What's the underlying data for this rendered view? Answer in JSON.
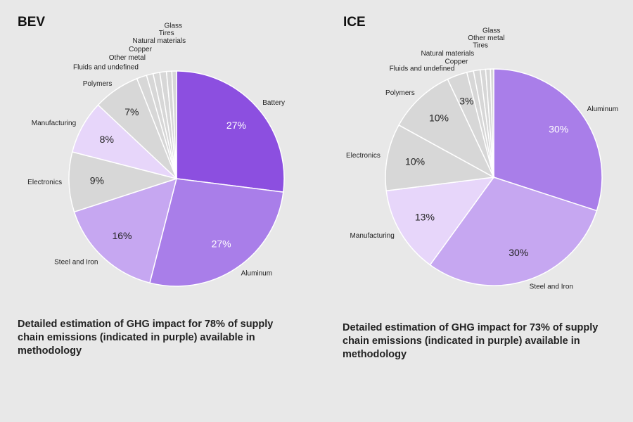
{
  "chart_data": [
    {
      "type": "pie",
      "title": "BEV",
      "categories": [
        "Battery",
        "Aluminum",
        "Steel and Iron",
        "Electronics",
        "Manufacturing",
        "Polymers",
        "Fluids and undefined",
        "Other metal",
        "Copper",
        "Natural materials",
        "Tires",
        "Glass"
      ],
      "values": [
        27,
        27,
        16,
        9,
        8,
        7,
        1.5,
        1,
        1,
        1,
        0.8,
        0.7
      ],
      "value_labels": [
        "27%",
        "27%",
        "16%",
        "9%",
        "8%",
        "7%",
        null,
        null,
        null,
        null,
        null,
        null
      ],
      "colors": [
        "#8c4fe0",
        "#a97ee9",
        "#c6a7f1",
        "#d7d7d7",
        "#e7d6fa",
        "#d7d7d7",
        "#d7d7d7",
        "#d7d7d7",
        "#d7d7d7",
        "#d7d7d7",
        "#d7d7d7",
        "#d7d7d7"
      ],
      "caption": "Detailed estimation of GHG impact for 78% of supply chain emissions (indicated in purple) available in methodology"
    },
    {
      "type": "pie",
      "title": "ICE",
      "categories": [
        "Aluminum",
        "Steel and Iron",
        "Manufacturing",
        "Electronics",
        "Polymers",
        "Fluids and undefined",
        "Copper",
        "Natural materials",
        "Tires",
        "Other metal",
        "Glass"
      ],
      "values": [
        30,
        30,
        13,
        10,
        10,
        3,
        1,
        1,
        0.8,
        0.7,
        0.5
      ],
      "value_labels": [
        "30%",
        "30%",
        "13%",
        "10%",
        "10%",
        "3%",
        null,
        null,
        null,
        null,
        null
      ],
      "colors": [
        "#a97ee9",
        "#c6a7f1",
        "#e7d6fa",
        "#d7d7d7",
        "#d7d7d7",
        "#d7d7d7",
        "#d7d7d7",
        "#d7d7d7",
        "#d7d7d7",
        "#d7d7d7",
        "#d7d7d7"
      ],
      "caption": "Detailed estimation of GHG impact for 73% of supply chain emissions (indicated in purple) available in methodology"
    }
  ]
}
